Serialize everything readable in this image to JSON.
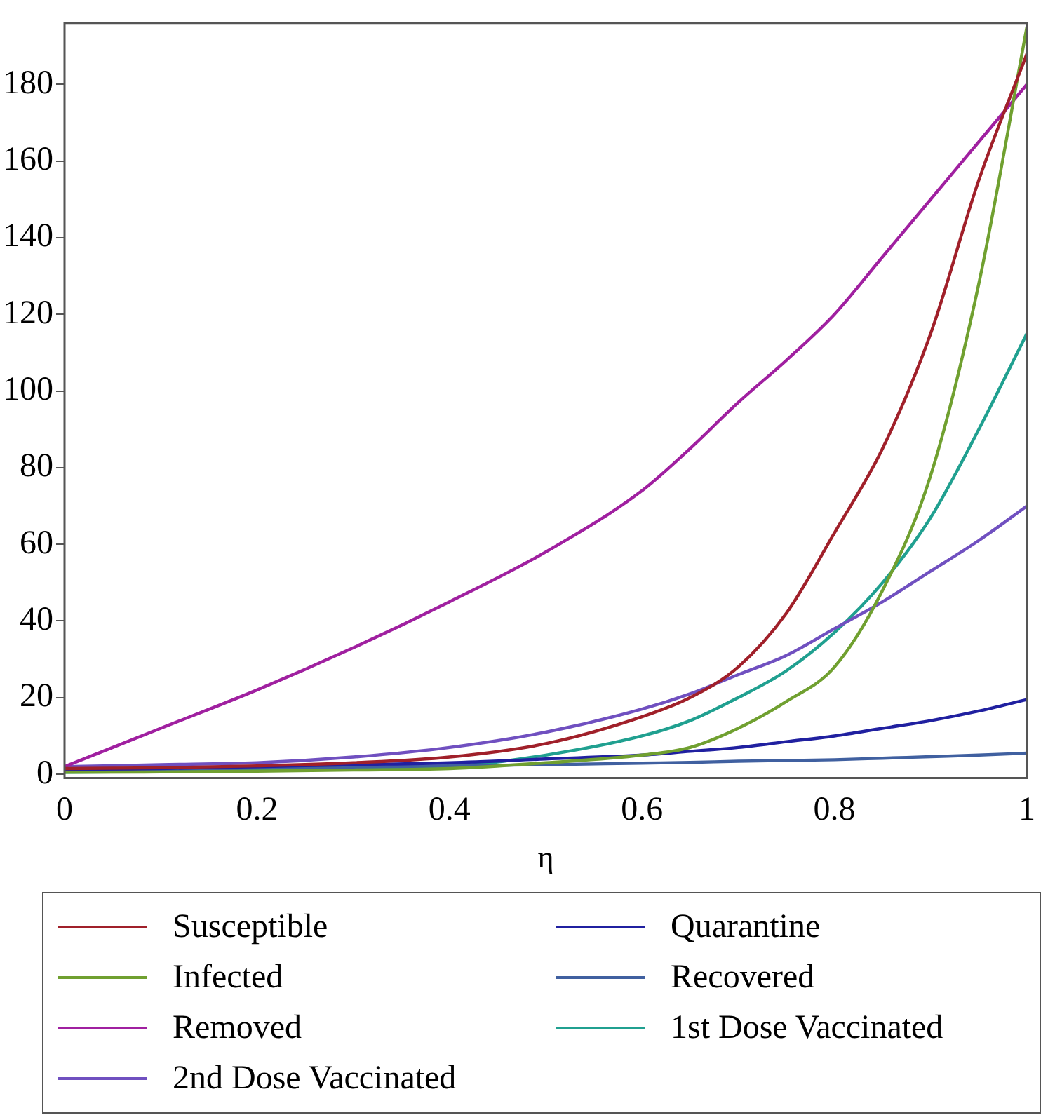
{
  "chart_data": {
    "type": "line",
    "xlabel": "η",
    "xlim": [
      0,
      1
    ],
    "xticks": [
      0,
      0.2,
      0.4,
      0.6,
      0.8,
      1
    ],
    "ylim": [
      -1,
      196
    ],
    "yticks": [
      0,
      20,
      40,
      60,
      80,
      100,
      120,
      140,
      160,
      180
    ],
    "grid": false,
    "legend": "bottom",
    "marker": "none",
    "line_style": "solid",
    "x": [
      0,
      0.1,
      0.2,
      0.3,
      0.4,
      0.5,
      0.6,
      0.65,
      0.7,
      0.75,
      0.8,
      0.85,
      0.9,
      0.95,
      1
    ],
    "series": [
      {
        "name": "Susceptible",
        "color": "#a0202a",
        "values": [
          1.5,
          1.7,
          2.2,
          3,
          4.5,
          8,
          15,
          20,
          28,
          42,
          63,
          85,
          115,
          155,
          188
        ]
      },
      {
        "name": "Infected",
        "color": "#70a030",
        "values": [
          0.5,
          0.6,
          0.8,
          1.1,
          1.5,
          3,
          5,
          7,
          12,
          19,
          28,
          48,
          78,
          128,
          195
        ]
      },
      {
        "name": "Removed",
        "color": "#a020a0",
        "values": [
          2,
          12,
          22,
          33,
          45,
          58,
          74,
          85,
          97,
          108,
          120,
          135,
          150,
          165,
          180
        ]
      },
      {
        "name": "2nd Dose Vaccinated",
        "color": "#7050c0",
        "values": [
          2,
          2.5,
          3,
          4.5,
          7,
          11,
          17,
          21,
          26,
          31,
          38,
          45,
          53,
          61,
          70
        ]
      },
      {
        "name": "Quarantine",
        "color": "#2020a0",
        "values": [
          1,
          1.5,
          2,
          2.5,
          3,
          4,
          5,
          6,
          7,
          8.5,
          10,
          12,
          14,
          16.5,
          19.5
        ]
      },
      {
        "name": "Recovered",
        "color": "#4060a0",
        "values": [
          1,
          1.3,
          1.6,
          1.9,
          2.2,
          2.5,
          2.9,
          3.1,
          3.4,
          3.6,
          3.8,
          4.2,
          4.6,
          5,
          5.5
        ]
      },
      {
        "name": "1st Dose Vaccinated",
        "color": "#20a090",
        "values": [
          0.5,
          0.7,
          1,
          1.4,
          2,
          5,
          10,
          14,
          20,
          27,
          37,
          50,
          67,
          90,
          115
        ]
      }
    ]
  }
}
